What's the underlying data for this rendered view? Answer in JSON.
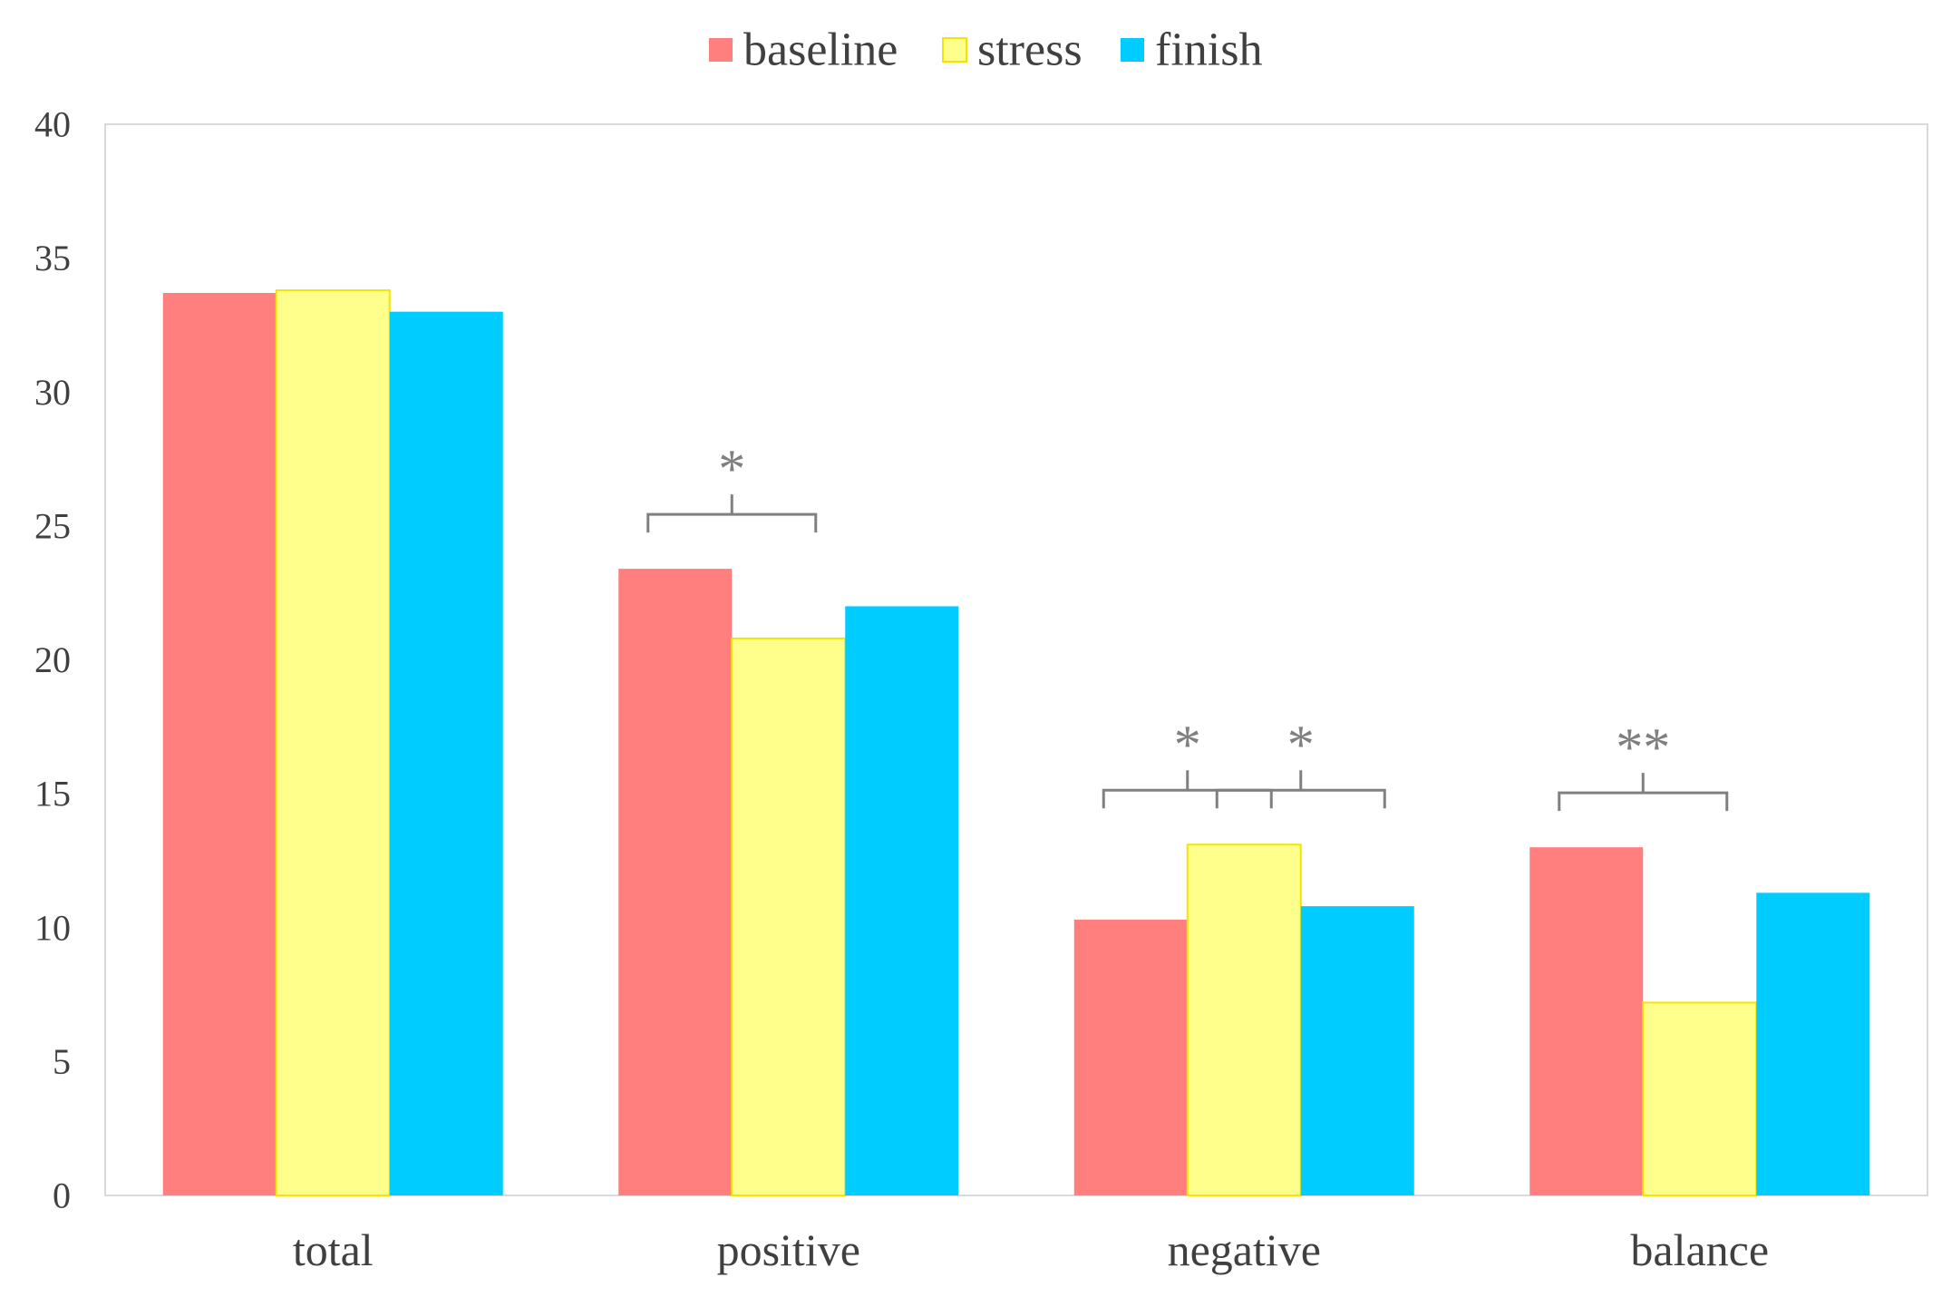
{
  "chart_data": {
    "type": "bar",
    "title": "",
    "xlabel": "",
    "ylabel": "",
    "ylim": [
      0,
      40
    ],
    "yticks": [
      0,
      5,
      10,
      15,
      20,
      25,
      30,
      35,
      40
    ],
    "categories": [
      "total",
      "positive",
      "negative",
      "balance"
    ],
    "series": [
      {
        "name": "baseline",
        "color": "#ff7f7f",
        "values": [
          33.7,
          23.4,
          10.3,
          13.0
        ]
      },
      {
        "name": "stress",
        "color": "#ffff8c",
        "values": [
          33.8,
          20.8,
          13.1,
          7.2
        ]
      },
      {
        "name": "finish",
        "color": "#00ccff",
        "values": [
          33.0,
          22.0,
          10.8,
          11.3
        ]
      }
    ],
    "legend_position": "top-center",
    "grid": false,
    "annotations": [
      {
        "category": "positive",
        "from_series": "baseline",
        "to_series": "stress",
        "label": "*"
      },
      {
        "category": "negative",
        "from_series": "baseline",
        "to_series": "stress",
        "label": "*"
      },
      {
        "category": "negative",
        "from_series": "stress",
        "to_series": "finish",
        "label": "*"
      },
      {
        "category": "balance",
        "from_series": "baseline",
        "to_series": "stress",
        "label": "**"
      }
    ]
  }
}
